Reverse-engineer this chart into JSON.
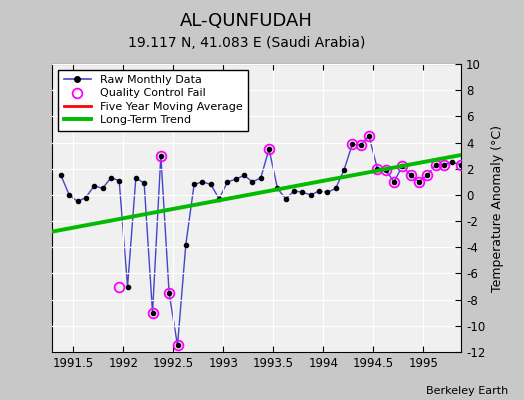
{
  "title": "AL-QUNFUDAH",
  "subtitle": "19.117 N, 41.083 E (Saudi Arabia)",
  "ylabel": "Temperature Anomaly (°C)",
  "watermark": "Berkeley Earth",
  "xlim": [
    1991.29,
    1995.38
  ],
  "ylim": [
    -12,
    10
  ],
  "yticks": [
    -12,
    -10,
    -8,
    -6,
    -4,
    -2,
    0,
    2,
    4,
    6,
    8,
    10
  ],
  "xticks": [
    1991.5,
    1992.0,
    1992.5,
    1993.0,
    1993.5,
    1994.0,
    1994.5,
    1995.0
  ],
  "background_color": "#c8c8c8",
  "plot_bg_color": "#f0f0f0",
  "raw_x": [
    1991.375,
    1991.458,
    1991.542,
    1991.625,
    1991.708,
    1991.792,
    1991.875,
    1991.958,
    1992.042,
    1992.125,
    1992.208,
    1992.292,
    1992.375,
    1992.458,
    1992.542,
    1992.625,
    1992.708,
    1992.792,
    1992.875,
    1992.958,
    1993.042,
    1993.125,
    1993.208,
    1993.292,
    1993.375,
    1993.458,
    1993.542,
    1993.625,
    1993.708,
    1993.792,
    1993.875,
    1993.958,
    1994.042,
    1994.125,
    1994.208,
    1994.292,
    1994.375,
    1994.458,
    1994.542,
    1994.625,
    1994.708,
    1994.792,
    1994.875,
    1994.958,
    1995.042,
    1995.125,
    1995.208,
    1995.292,
    1995.375
  ],
  "raw_y": [
    1.5,
    0.0,
    -0.5,
    -0.2,
    0.7,
    0.5,
    1.3,
    1.1,
    -7.0,
    1.3,
    0.9,
    -9.0,
    3.0,
    -7.5,
    -11.5,
    -3.8,
    0.8,
    1.0,
    0.8,
    -0.3,
    1.0,
    1.2,
    1.5,
    1.0,
    1.3,
    3.5,
    0.5,
    -0.3,
    0.3,
    0.2,
    0.0,
    0.3,
    0.2,
    0.5,
    1.9,
    3.9,
    3.8,
    4.5,
    2.0,
    1.9,
    1.0,
    2.2,
    1.5,
    1.0,
    1.5,
    2.3,
    2.3,
    2.5,
    2.3
  ],
  "qc_fail_x": [
    1991.958,
    1992.292,
    1992.375,
    1992.458,
    1992.542,
    1993.458,
    1994.292,
    1994.375,
    1994.458,
    1994.542,
    1994.625,
    1994.708,
    1994.792,
    1994.875,
    1994.958,
    1995.042,
    1995.125,
    1995.208,
    1995.375
  ],
  "qc_fail_y": [
    -7.0,
    -9.0,
    3.0,
    -7.5,
    -11.5,
    3.5,
    3.9,
    3.8,
    4.5,
    2.0,
    1.9,
    1.0,
    2.2,
    1.5,
    1.0,
    1.5,
    2.3,
    2.3,
    2.3
  ],
  "trend_x": [
    1991.29,
    1995.38
  ],
  "trend_y": [
    -2.8,
    3.05
  ],
  "raw_line_color": "#4444cc",
  "raw_dot_color": "#000000",
  "qc_color": "#ff00ff",
  "trend_color": "#00bb00",
  "moving_avg_color": "#ff0000",
  "title_fontsize": 13,
  "subtitle_fontsize": 10,
  "label_fontsize": 9
}
